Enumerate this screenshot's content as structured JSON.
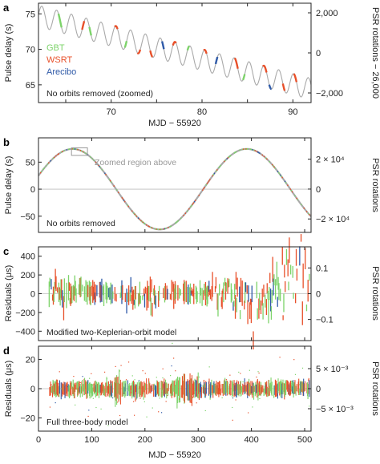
{
  "colors": {
    "gbt": "#7dd36a",
    "wsrt": "#e8502a",
    "arecibo": "#2f5aa8",
    "model": "#a9a9a9",
    "axis": "#222222"
  },
  "chart_data": [
    {
      "panel_label": "a",
      "type": "line",
      "xlabel": "MJD − 55920",
      "ylabel": "Pulse delay (s)",
      "y2label": "PSR rotations − 26,000",
      "xlim": [
        62,
        92
      ],
      "ylim": [
        62.5,
        76.5
      ],
      "y2lim": [
        -2480,
        2480
      ],
      "xticks": [
        70,
        80,
        90
      ],
      "yticks": [
        65,
        70,
        75
      ],
      "y2ticks": [
        {
          "value": 2000,
          "label": "2,000"
        },
        {
          "value": 0,
          "label": "0"
        },
        {
          "value": -2000,
          "label": "−2,000"
        }
      ],
      "legend": [
        "GBT",
        "WSRT",
        "Arecibo"
      ],
      "annotation": "No orbits removed (zoomed)",
      "model": {
        "offset": 74.7,
        "slope": -0.343,
        "amplitude": 1.5,
        "period_days": 1.6294,
        "phase": 0.15
      }
    },
    {
      "panel_label": "b",
      "type": "line",
      "xlabel": "",
      "ylabel": "Pulse delay (s)",
      "y2label": "PSR rotations",
      "xlim": [
        0,
        512
      ],
      "ylim": [
        -80,
        95
      ],
      "y2lim": [
        -29000,
        34300
      ],
      "yticks": [
        -50,
        0,
        50
      ],
      "y2ticks": [
        {
          "value": 20000,
          "label": "2 × 10⁴"
        },
        {
          "value": 0,
          "label": "0"
        },
        {
          "value": -20000,
          "label": "−2 × 10⁴"
        }
      ],
      "annotation": "No orbits removed",
      "zoom_label": "Zoomed region above",
      "zoom_box": {
        "x": [
          62,
          92
        ],
        "y": [
          62.5,
          76.5
        ]
      },
      "model": {
        "amplitude": 74.5,
        "period_days": 327.3,
        "peak_mjd": 64
      }
    },
    {
      "panel_label": "c",
      "type": "scatter",
      "xlabel": "",
      "ylabel": "Residuals (μs)",
      "y2label": "PSR rotations",
      "xlim": [
        0,
        512
      ],
      "ylim": [
        -500,
        500
      ],
      "y2lim": [
        -0.182,
        0.182
      ],
      "yticks": [
        -400,
        -200,
        0,
        200,
        400
      ],
      "y2ticks": [
        {
          "value": 0.1,
          "label": "0.1"
        },
        {
          "value": 0,
          "label": "0"
        },
        {
          "value": -0.1,
          "label": "−0.1"
        }
      ],
      "annotation": "Modified two-Keplerian-orbit model"
    },
    {
      "panel_label": "d",
      "type": "scatter",
      "xlabel": "MJD − 55920",
      "ylabel": "Residuals (μs)",
      "y2label": "PSR rotations",
      "xlim": [
        0,
        512
      ],
      "ylim": [
        -29,
        29
      ],
      "y2lim": [
        -0.0106,
        0.0106
      ],
      "xticks": [
        0,
        100,
        200,
        300,
        400,
        500
      ],
      "yticks": [
        -20,
        0,
        20
      ],
      "y2ticks": [
        {
          "value": 0.005,
          "label": "5 × 10⁻³"
        },
        {
          "value": 0,
          "label": "0"
        },
        {
          "value": -0.005,
          "label": "−5 × 10⁻³"
        }
      ],
      "annotation": "Full three-body model"
    }
  ]
}
